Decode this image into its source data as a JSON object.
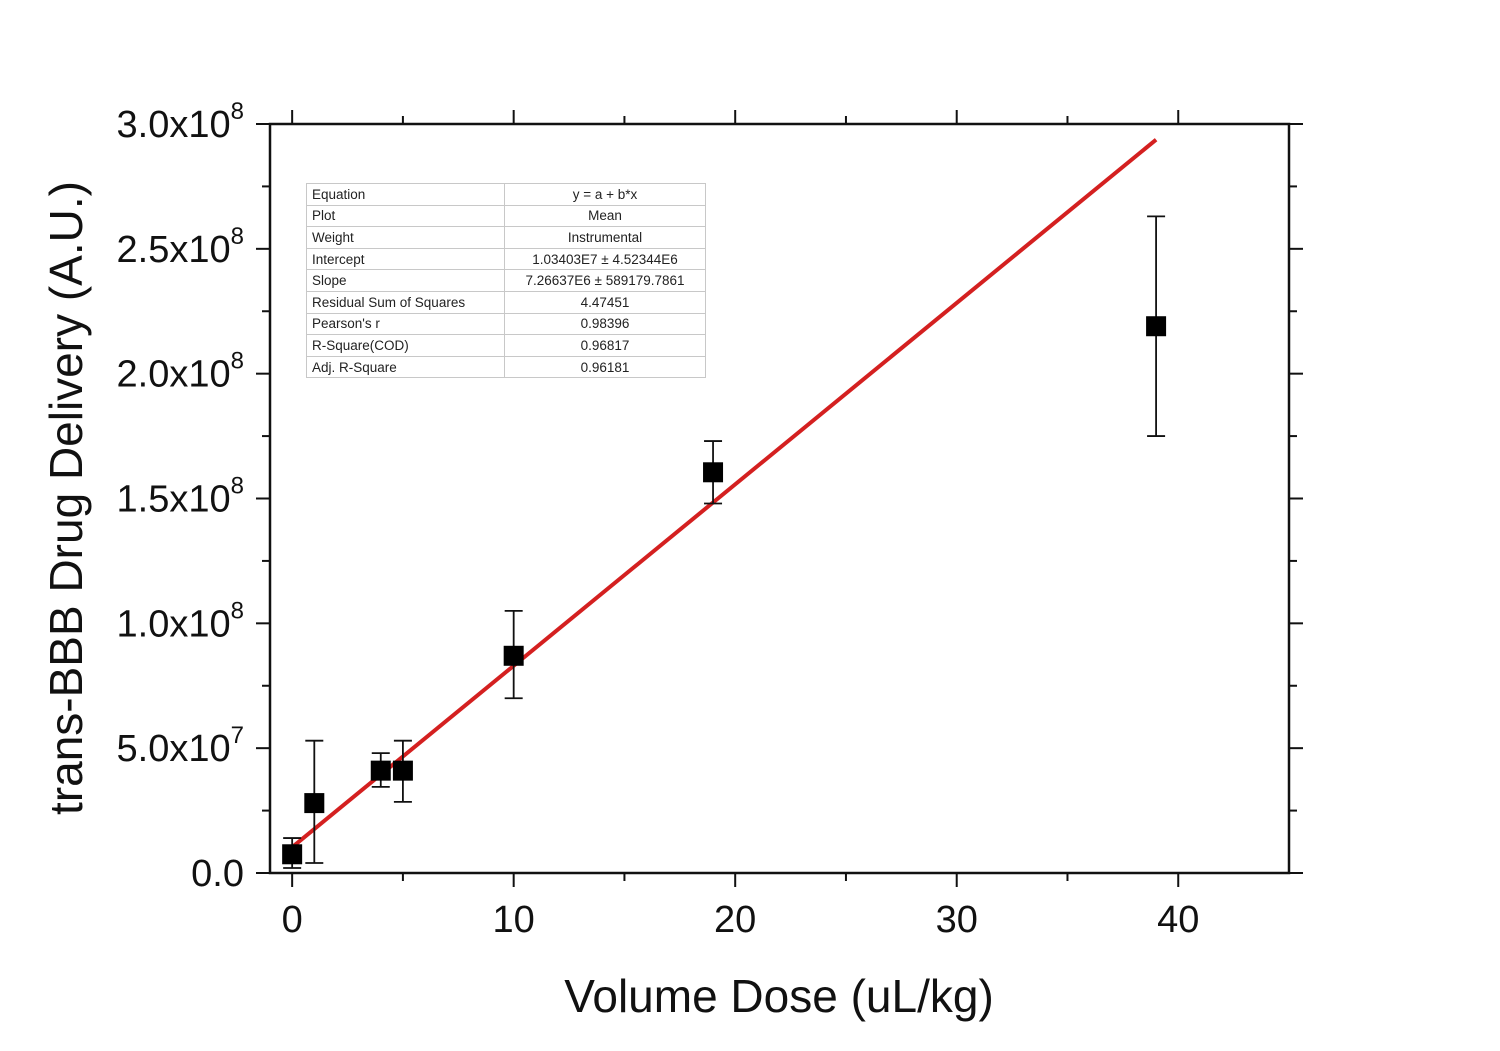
{
  "chart_data": {
    "type": "scatter",
    "xlabel": "Volume Dose (uL/kg)",
    "ylabel": "trans-BBB Drug Delivery (A.U.)",
    "xlim": [
      -1,
      45
    ],
    "ylim": [
      0,
      300000000
    ],
    "x_ticks": [
      "0",
      "10",
      "20",
      "30",
      "40"
    ],
    "x_tick_values": [
      0,
      10,
      20,
      30,
      40
    ],
    "y_ticks": [
      {
        "value": 0,
        "mantissa": "0.0",
        "exp": ""
      },
      {
        "value": 50000000,
        "mantissa": "5.0x10",
        "exp": "7"
      },
      {
        "value": 100000000,
        "mantissa": "1.0x10",
        "exp": "8"
      },
      {
        "value": 150000000,
        "mantissa": "1.5x10",
        "exp": "8"
      },
      {
        "value": 200000000,
        "mantissa": "2.0x10",
        "exp": "8"
      },
      {
        "value": 250000000,
        "mantissa": "2.5x10",
        "exp": "8"
      },
      {
        "value": 300000000,
        "mantissa": "3.0x10",
        "exp": "8"
      }
    ],
    "grid": false,
    "points": [
      {
        "x": 0,
        "y": 7500000,
        "err_low": 2000000,
        "err_high": 14000000
      },
      {
        "x": 1,
        "y": 28000000,
        "err_low": 4000000,
        "err_high": 53000000
      },
      {
        "x": 4,
        "y": 41000000,
        "err_low": 34500000,
        "err_high": 48000000
      },
      {
        "x": 5,
        "y": 41000000,
        "err_low": 28500000,
        "err_high": 53000000
      },
      {
        "x": 10,
        "y": 87000000,
        "err_low": 70000000,
        "err_high": 105000000
      },
      {
        "x": 19,
        "y": 160500000,
        "err_low": 148000000,
        "err_high": 173000000
      },
      {
        "x": 39,
        "y": 219000000,
        "err_low": 175000000,
        "err_high": 263000000
      }
    ],
    "fit_line": {
      "intercept": 10340300,
      "slope": 7266370,
      "x_range": [
        0,
        39
      ],
      "color": "#d42020"
    },
    "marker_color": "#000000"
  },
  "fit_table": [
    {
      "key": "Equation",
      "value": "y = a + b*x"
    },
    {
      "key": "Plot",
      "value": "Mean"
    },
    {
      "key": "Weight",
      "value": "Instrumental"
    },
    {
      "key": "Intercept",
      "value": "1.03403E7 ± 4.52344E6"
    },
    {
      "key": "Slope",
      "value": "7.26637E6 ± 589179.7861"
    },
    {
      "key": "Residual Sum of Squares",
      "value": "4.47451"
    },
    {
      "key": "Pearson's r",
      "value": "0.98396"
    },
    {
      "key": "R-Square(COD)",
      "value": "0.96817"
    },
    {
      "key": "Adj. R-Square",
      "value": "0.96181"
    }
  ]
}
